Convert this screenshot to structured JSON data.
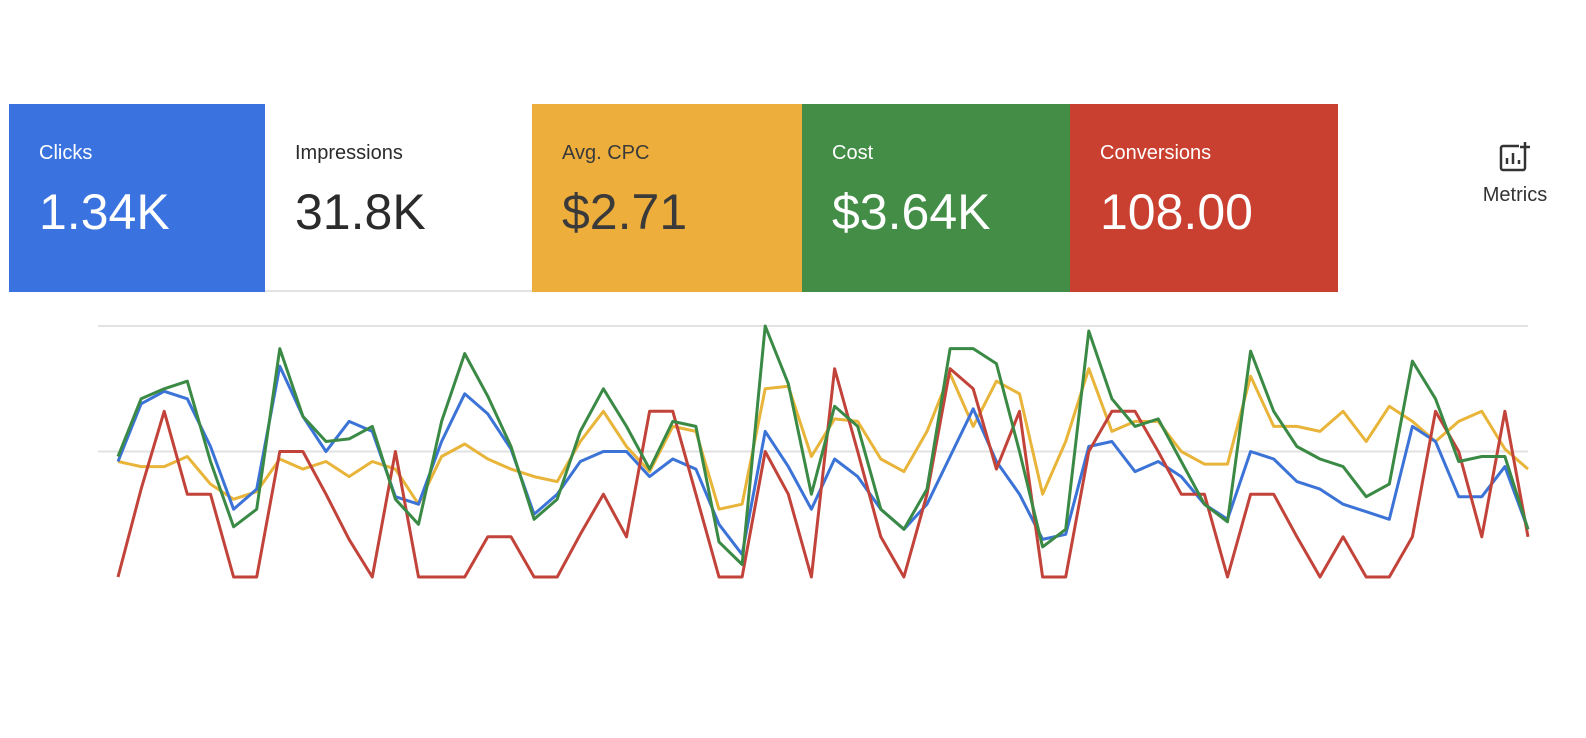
{
  "cards": [
    {
      "label": "Clicks",
      "value": "1.34K",
      "color": "#3a73e0",
      "text_color": "#ffffff"
    },
    {
      "label": "Impressions",
      "value": "31.8K",
      "color": "#ffffff",
      "text_color": "#2b2b2b"
    },
    {
      "label": "Avg. CPC",
      "value": "$2.71",
      "color": "#eeae3c",
      "text_color": "#3a3a3a"
    },
    {
      "label": "Cost",
      "value": "$3.64K",
      "color": "#438d47",
      "text_color": "#ffffff"
    },
    {
      "label": "Conversions",
      "value": "108.00",
      "color": "#c93f30",
      "text_color": "#ffffff"
    }
  ],
  "metrics_button": {
    "label": "Metrics"
  },
  "chart_data": {
    "type": "line",
    "ylim": [
      0,
      100
    ],
    "yticks": [
      50,
      100
    ],
    "grid": true,
    "series": [
      {
        "color": "#e8b53a",
        "values": [
          46,
          44,
          44,
          48,
          37,
          31,
          34,
          47,
          43,
          46,
          40,
          46,
          43,
          29,
          48,
          53,
          47,
          43,
          40,
          38,
          54,
          66,
          52,
          42,
          60,
          58,
          27,
          29,
          75,
          76,
          48,
          63,
          62,
          47,
          42,
          58,
          81,
          60,
          78,
          73,
          33,
          54,
          83,
          58,
          62,
          62,
          50,
          45,
          45,
          80,
          60,
          60,
          58,
          66,
          54,
          68,
          62,
          54,
          62,
          66,
          51,
          43
        ]
      },
      {
        "color": "#3c73d6",
        "values": [
          46,
          69,
          74,
          71,
          52,
          27,
          35,
          84,
          64,
          50,
          62,
          58,
          32,
          29,
          54,
          73,
          65,
          51,
          25,
          33,
          46,
          50,
          50,
          40,
          47,
          43,
          21,
          9,
          58,
          44,
          27,
          47,
          40,
          27,
          19,
          29,
          48,
          67,
          46,
          33,
          15,
          17,
          52,
          54,
          42,
          46,
          40,
          29,
          23,
          50,
          47,
          38,
          35,
          29,
          26,
          23,
          60,
          54,
          32,
          32,
          44,
          19
        ]
      },
      {
        "color": "#c2433a",
        "values": [
          0,
          35,
          66,
          33,
          33,
          0,
          0,
          50,
          50,
          33,
          15,
          0,
          50,
          0,
          0,
          0,
          16,
          16,
          0,
          0,
          17,
          33,
          16,
          66,
          66,
          33,
          0,
          0,
          50,
          33,
          0,
          83,
          50,
          16,
          0,
          33,
          83,
          75,
          43,
          66,
          0,
          0,
          50,
          66,
          66,
          50,
          33,
          33,
          0,
          33,
          33,
          16,
          0,
          16,
          0,
          0,
          16,
          66,
          50,
          16,
          66,
          16
        ]
      },
      {
        "color": "#3a8a45",
        "values": [
          48,
          71,
          75,
          78,
          46,
          20,
          27,
          91,
          64,
          54,
          55,
          60,
          31,
          21,
          62,
          89,
          72,
          52,
          23,
          31,
          58,
          75,
          60,
          43,
          62,
          60,
          14,
          5,
          100,
          77,
          33,
          68,
          60,
          27,
          19,
          35,
          91,
          91,
          85,
          50,
          12,
          19,
          98,
          71,
          60,
          63,
          46,
          29,
          22,
          90,
          66,
          52,
          47,
          44,
          32,
          37,
          86,
          71,
          46,
          48,
          48,
          19
        ]
      }
    ]
  }
}
